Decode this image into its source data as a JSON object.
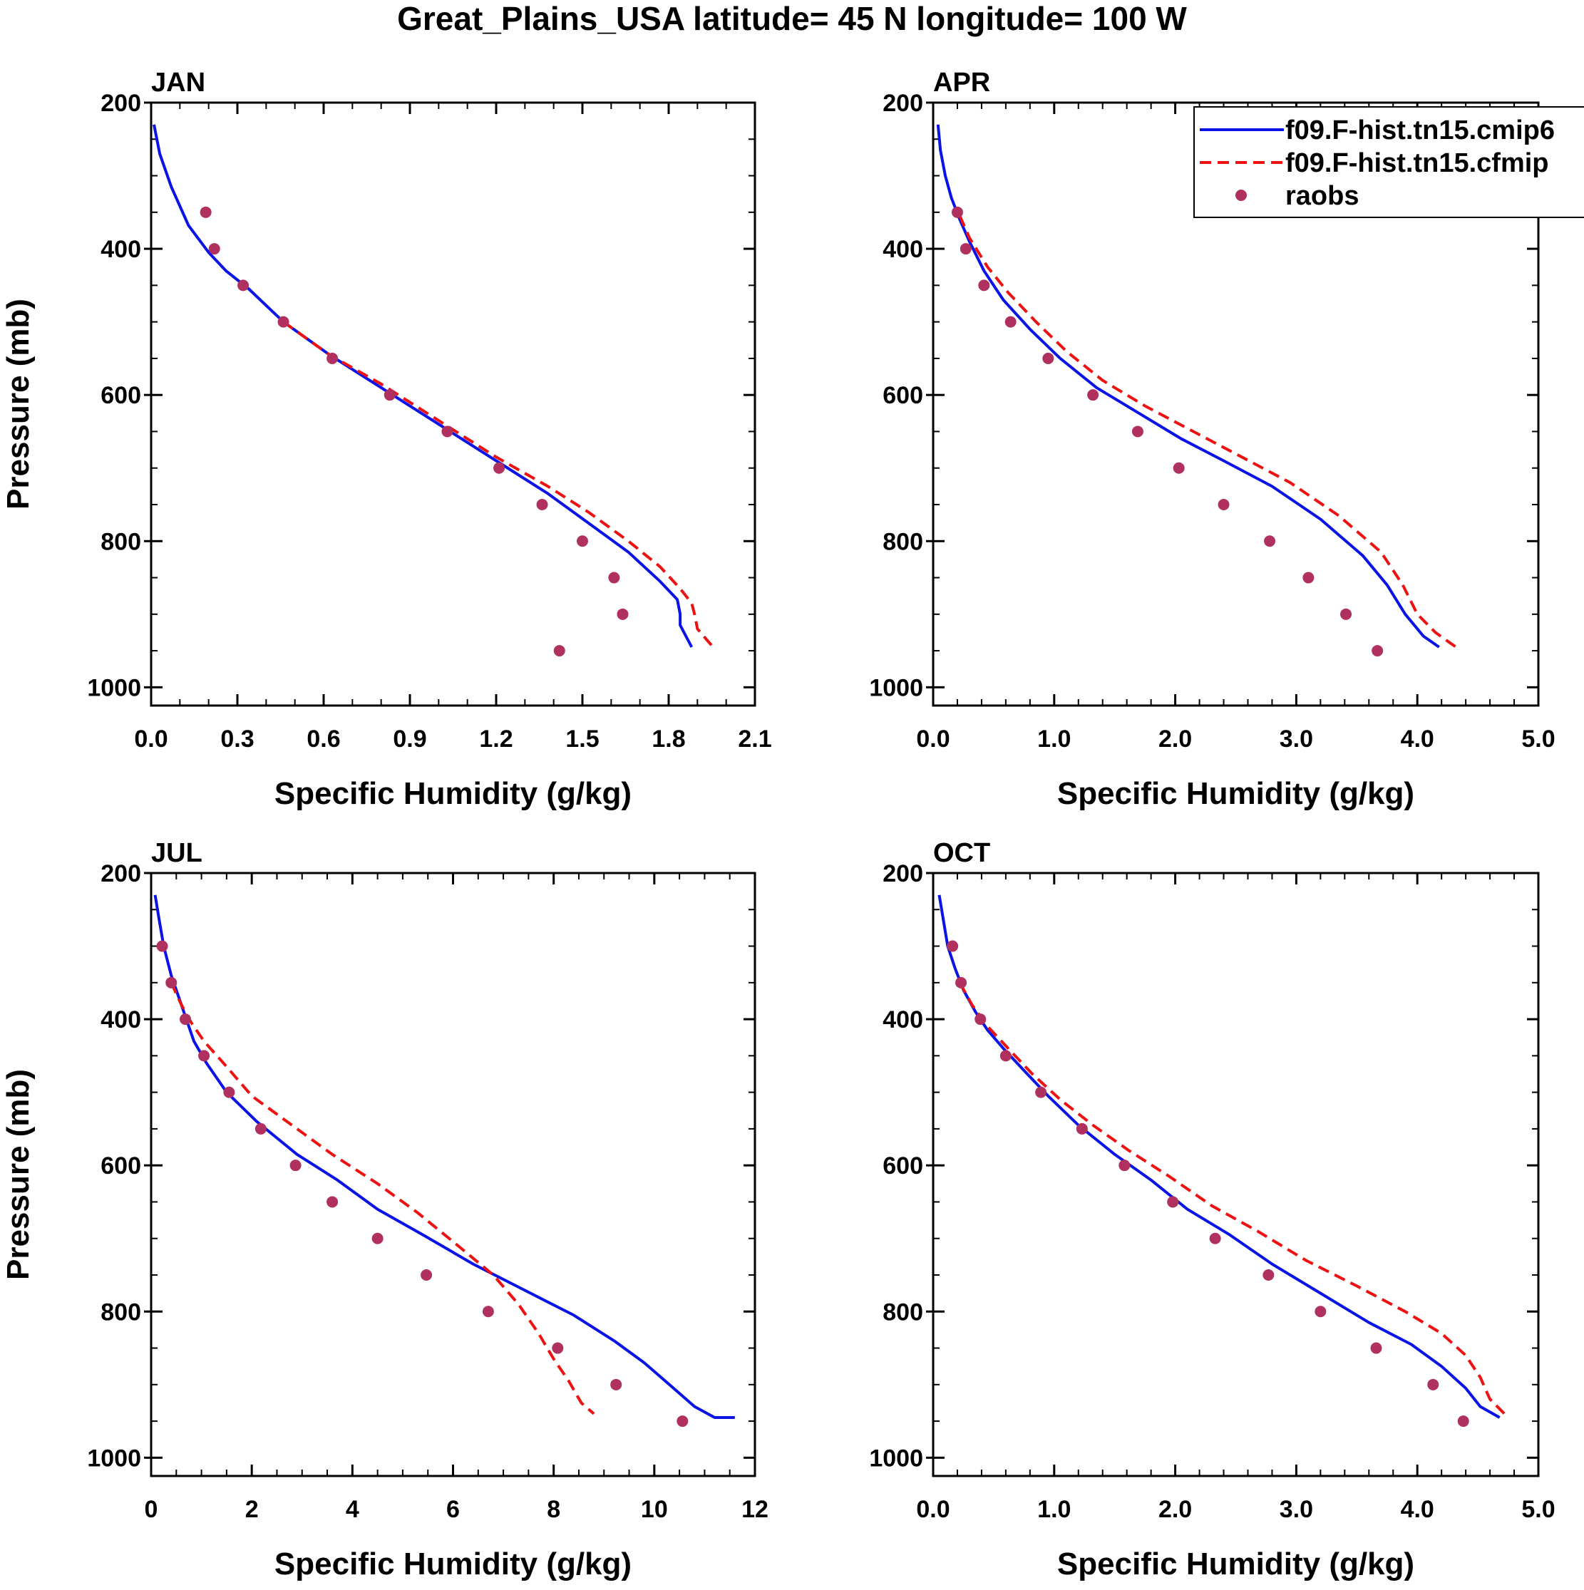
{
  "title": "Great_Plains_USA  latitude= 45 N longitude= 100 W",
  "colors": {
    "cmip6": "#0a14e6",
    "cfmip": "#ee1111",
    "raobs": "#b03060",
    "axes": "#000000"
  },
  "legend": {
    "placement": "top-right of APR panel",
    "entries": [
      {
        "label": "f09.F-hist.tn15.cmip6",
        "style": "solid",
        "color": "#0a14e6"
      },
      {
        "label": "f09.F-hist.tn15.cfmip",
        "style": "dashed",
        "color": "#ee1111"
      },
      {
        "label": "raobs",
        "style": "marker",
        "color": "#b03060"
      }
    ]
  },
  "chart_data": [
    {
      "type": "line",
      "title": "JAN",
      "xlabel": "Specific Humidity (g/kg)",
      "ylabel": "Pressure (mb)",
      "xlim": [
        0,
        2.1
      ],
      "ylim": [
        200,
        1025
      ],
      "xticks": [
        0,
        0.3,
        0.6,
        0.9,
        1.2,
        1.5,
        1.8,
        2.1
      ],
      "xticklabels": [
        "0.0",
        "0.3",
        "0.6",
        "0.9",
        "1.2",
        "1.5",
        "1.8",
        "2.1"
      ],
      "xminor": 0.1,
      "yticks": [
        200,
        400,
        600,
        800,
        1000
      ],
      "yticklabels": [
        "200",
        "400",
        "600",
        "800",
        "1000"
      ],
      "yminor": 50,
      "series": [
        {
          "name": "f09.F-hist.tn15.cmip6",
          "style": "solid",
          "x": [
            0.01,
            0.03,
            0.07,
            0.13,
            0.2,
            0.26,
            0.34,
            0.46,
            0.62,
            0.8,
            1.0,
            1.2,
            1.38,
            1.52,
            1.66,
            1.77,
            1.83,
            1.84,
            1.84,
            1.88
          ],
          "y": [
            230,
            270,
            315,
            368,
            405,
            430,
            455,
            500,
            545,
            590,
            640,
            690,
            735,
            775,
            815,
            855,
            880,
            900,
            915,
            945
          ]
        },
        {
          "name": "f09.F-hist.tn15.cfmip",
          "style": "dashed",
          "x": [
            0.46,
            0.62,
            0.8,
            1.0,
            1.2,
            1.38,
            1.52,
            1.66,
            1.77,
            1.84,
            1.88,
            1.89,
            1.9,
            1.95
          ],
          "y": [
            500,
            545,
            585,
            635,
            685,
            725,
            760,
            800,
            835,
            865,
            885,
            900,
            920,
            943
          ]
        },
        {
          "name": "raobs",
          "style": "marker",
          "x": [
            0.19,
            0.22,
            0.32,
            0.46,
            0.63,
            0.83,
            1.03,
            1.21,
            1.36,
            1.5,
            1.61,
            1.64,
            1.42
          ],
          "y": [
            350,
            400,
            450,
            500,
            550,
            600,
            650,
            700,
            750,
            800,
            850,
            900,
            950
          ]
        }
      ]
    },
    {
      "type": "line",
      "title": "APR",
      "xlabel": "Specific Humidity (g/kg)",
      "ylabel": "",
      "xlim": [
        0,
        5.0
      ],
      "ylim": [
        200,
        1025
      ],
      "xticks": [
        0,
        1,
        2,
        3,
        4,
        5
      ],
      "xticklabels": [
        "0.0",
        "1.0",
        "2.0",
        "3.0",
        "4.0",
        "5.0"
      ],
      "xminor": 0.2,
      "yticks": [
        200,
        400,
        600,
        800,
        1000
      ],
      "yticklabels": [
        "200",
        "400",
        "600",
        "800",
        "1000"
      ],
      "yminor": 50,
      "series": [
        {
          "name": "f09.F-hist.tn15.cmip6",
          "style": "solid",
          "x": [
            0.04,
            0.06,
            0.1,
            0.15,
            0.22,
            0.3,
            0.42,
            0.58,
            0.8,
            1.05,
            1.35,
            1.7,
            2.05,
            2.4,
            2.8,
            3.2,
            3.55,
            3.75,
            3.9,
            4.05,
            4.18
          ],
          "y": [
            230,
            265,
            300,
            330,
            360,
            390,
            430,
            470,
            510,
            550,
            590,
            625,
            660,
            690,
            725,
            770,
            820,
            860,
            900,
            930,
            945
          ]
        },
        {
          "name": "f09.F-hist.tn15.cfmip",
          "style": "dashed",
          "x": [
            0.22,
            0.3,
            0.45,
            0.62,
            0.85,
            1.1,
            1.4,
            1.75,
            2.15,
            2.55,
            2.95,
            3.35,
            3.7,
            3.88,
            4.0,
            4.15,
            4.32
          ],
          "y": [
            355,
            385,
            425,
            460,
            500,
            540,
            580,
            615,
            650,
            685,
            720,
            765,
            815,
            860,
            900,
            925,
            945
          ]
        },
        {
          "name": "raobs",
          "style": "marker",
          "x": [
            0.2,
            0.27,
            0.42,
            0.64,
            0.95,
            1.32,
            1.69,
            2.03,
            2.4,
            2.78,
            3.1,
            3.41,
            3.67
          ],
          "y": [
            350,
            400,
            450,
            500,
            550,
            600,
            650,
            700,
            750,
            800,
            850,
            900,
            950
          ]
        }
      ]
    },
    {
      "type": "line",
      "title": "JUL",
      "xlabel": "Specific Humidity (g/kg)",
      "ylabel": "Pressure (mb)",
      "xlim": [
        0,
        12
      ],
      "ylim": [
        200,
        1025
      ],
      "xticks": [
        0,
        2,
        4,
        6,
        8,
        10,
        12
      ],
      "xticklabels": [
        "0",
        "2",
        "4",
        "6",
        "8",
        "10",
        "12"
      ],
      "xminor": 0.5,
      "yticks": [
        200,
        400,
        600,
        800,
        1000
      ],
      "yticklabels": [
        "200",
        "400",
        "600",
        "800",
        "1000"
      ],
      "yminor": 50,
      "series": [
        {
          "name": "f09.F-hist.tn15.cmip6",
          "style": "solid",
          "x": [
            0.08,
            0.15,
            0.25,
            0.4,
            0.55,
            0.7,
            0.85,
            1.1,
            1.5,
            2.1,
            2.9,
            3.7,
            4.5,
            5.4,
            6.4,
            7.4,
            8.4,
            9.2,
            9.8,
            10.3,
            10.8,
            11.2,
            11.6
          ],
          "y": [
            230,
            260,
            300,
            340,
            370,
            400,
            430,
            460,
            500,
            540,
            585,
            620,
            660,
            695,
            735,
            770,
            805,
            840,
            870,
            900,
            930,
            945,
            945
          ]
        },
        {
          "name": "f09.F-hist.tn15.cfmip",
          "style": "dashed",
          "x": [
            0.4,
            0.6,
            0.8,
            1.05,
            1.5,
            2.0,
            2.8,
            3.6,
            4.5,
            5.3,
            6.1,
            6.8,
            7.3,
            7.7,
            8.0,
            8.3,
            8.55,
            8.8
          ],
          "y": [
            350,
            380,
            405,
            430,
            465,
            505,
            545,
            585,
            625,
            665,
            710,
            750,
            790,
            830,
            865,
            895,
            925,
            940
          ]
        },
        {
          "name": "raobs",
          "style": "marker",
          "x": [
            0.22,
            0.4,
            0.68,
            1.05,
            1.55,
            2.18,
            2.87,
            3.6,
            4.5,
            5.47,
            6.7,
            8.08,
            9.24,
            10.56
          ],
          "y": [
            300,
            350,
            400,
            450,
            500,
            550,
            600,
            650,
            700,
            750,
            800,
            850,
            900,
            950
          ]
        }
      ]
    },
    {
      "type": "line",
      "title": "OCT",
      "xlabel": "Specific Humidity (g/kg)",
      "ylabel": "",
      "xlim": [
        0,
        5.0
      ],
      "ylim": [
        200,
        1025
      ],
      "xticks": [
        0,
        1,
        2,
        3,
        4,
        5
      ],
      "xticklabels": [
        "0.0",
        "1.0",
        "2.0",
        "3.0",
        "4.0",
        "5.0"
      ],
      "xminor": 0.2,
      "yticks": [
        200,
        400,
        600,
        800,
        1000
      ],
      "yticklabels": [
        "200",
        "400",
        "600",
        "800",
        "1000"
      ],
      "yminor": 50,
      "series": [
        {
          "name": "f09.F-hist.tn15.cmip6",
          "style": "solid",
          "x": [
            0.05,
            0.08,
            0.12,
            0.18,
            0.25,
            0.35,
            0.45,
            0.58,
            0.75,
            0.95,
            1.2,
            1.5,
            1.8,
            2.1,
            2.45,
            2.8,
            3.2,
            3.6,
            3.95,
            4.2,
            4.4,
            4.52,
            4.68
          ],
          "y": [
            230,
            260,
            300,
            330,
            360,
            390,
            415,
            440,
            470,
            505,
            545,
            585,
            620,
            660,
            695,
            735,
            775,
            815,
            845,
            875,
            905,
            930,
            945
          ]
        },
        {
          "name": "f09.F-hist.tn15.cfmip",
          "style": "dashed",
          "x": [
            0.22,
            0.32,
            0.45,
            0.62,
            0.82,
            1.05,
            1.32,
            1.62,
            1.95,
            2.3,
            2.68,
            3.08,
            3.5,
            3.9,
            4.2,
            4.4,
            4.52,
            4.6,
            4.75
          ],
          "y": [
            350,
            380,
            410,
            440,
            475,
            510,
            545,
            580,
            615,
            655,
            690,
            730,
            765,
            800,
            830,
            860,
            890,
            920,
            945
          ]
        },
        {
          "name": "raobs",
          "style": "marker",
          "x": [
            0.16,
            0.23,
            0.39,
            0.6,
            0.89,
            1.23,
            1.58,
            1.98,
            2.33,
            2.77,
            3.2,
            3.66,
            4.13,
            4.38
          ],
          "y": [
            300,
            350,
            400,
            450,
            500,
            550,
            600,
            650,
            700,
            750,
            800,
            850,
            900,
            950
          ]
        }
      ]
    }
  ]
}
